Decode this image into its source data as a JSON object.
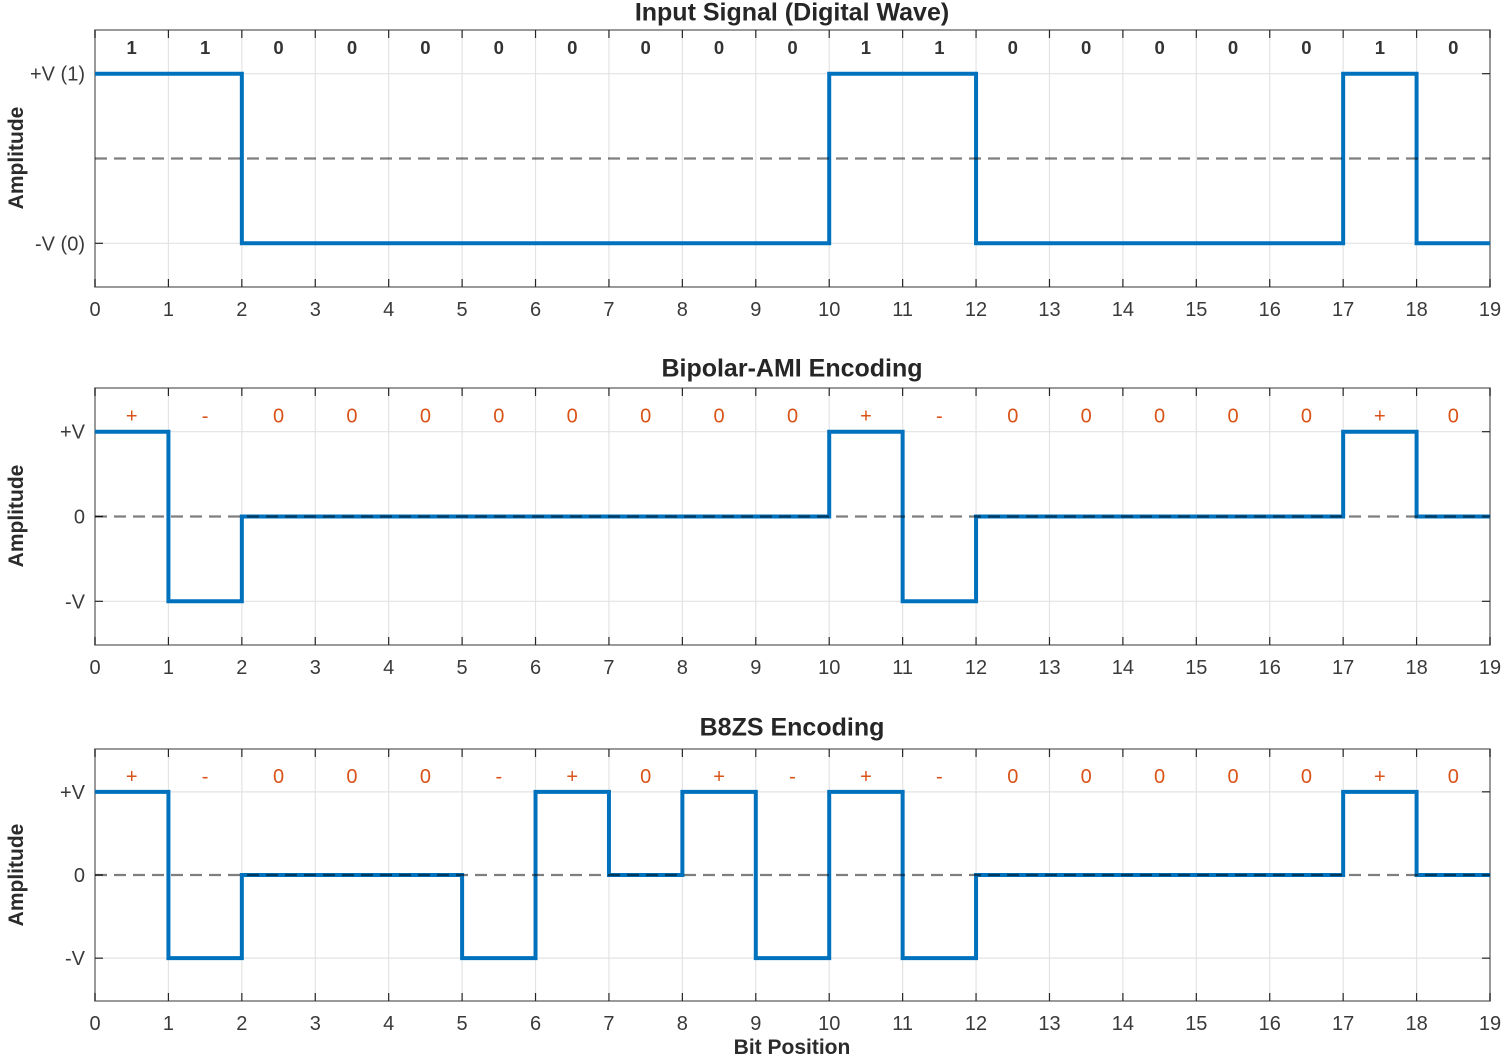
{
  "colors": {
    "waveform_blue": "#0072BD",
    "symbol_orange": "#D95319",
    "bit_label_dark": "#333333",
    "axes_box_gray": "#808080",
    "grid_gray": "#e3e3e3",
    "tick_mark": "#262626",
    "tick_label": "#3a3a3a",
    "zero_dashed": "rgba(0,0,0,0.5)",
    "background": "#ffffff"
  },
  "chart_data": [
    {
      "type": "line",
      "subtype": "digital_step",
      "title": "Input Signal (Digital Wave)",
      "xlabel": "",
      "ylabel": "Amplitude",
      "xlim": [
        0,
        19
      ],
      "x_ticks": [
        "0",
        "1",
        "2",
        "3",
        "4",
        "5",
        "6",
        "7",
        "8",
        "9",
        "10",
        "11",
        "12",
        "13",
        "14",
        "15",
        "16",
        "17",
        "18",
        "19"
      ],
      "y_ticks": [
        {
          "label": "+V (1)",
          "level": 1
        },
        {
          "label": "-V (0)",
          "level": -1
        }
      ],
      "grid": true,
      "zero_dashed_line": true,
      "annotations": {
        "labels": [
          "1",
          "1",
          "0",
          "0",
          "0",
          "0",
          "0",
          "0",
          "0",
          "0",
          "1",
          "1",
          "0",
          "0",
          "0",
          "0",
          "0",
          "1",
          "0"
        ],
        "color": "#333333",
        "bold": true
      },
      "levels": [
        1,
        1,
        -1,
        -1,
        -1,
        -1,
        -1,
        -1,
        -1,
        -1,
        1,
        1,
        -1,
        -1,
        -1,
        -1,
        -1,
        1,
        -1
      ]
    },
    {
      "type": "line",
      "subtype": "digital_step",
      "title": "Bipolar-AMI Encoding",
      "xlabel": "",
      "ylabel": "Amplitude",
      "xlim": [
        0,
        19
      ],
      "x_ticks": [
        "0",
        "1",
        "2",
        "3",
        "4",
        "5",
        "6",
        "7",
        "8",
        "9",
        "10",
        "11",
        "12",
        "13",
        "14",
        "15",
        "16",
        "17",
        "18",
        "19"
      ],
      "y_ticks": [
        {
          "label": "+V",
          "level": 1
        },
        {
          "label": "0",
          "level": 0
        },
        {
          "label": "-V",
          "level": -1
        }
      ],
      "grid": true,
      "zero_dashed_line": true,
      "annotations": {
        "labels": [
          "+",
          "-",
          "0",
          "0",
          "0",
          "0",
          "0",
          "0",
          "0",
          "0",
          "+",
          "-",
          "0",
          "0",
          "0",
          "0",
          "0",
          "+",
          "0"
        ],
        "color": "#D95319",
        "bold": false
      },
      "levels": [
        1,
        -1,
        0,
        0,
        0,
        0,
        0,
        0,
        0,
        0,
        1,
        -1,
        0,
        0,
        0,
        0,
        0,
        1,
        0
      ]
    },
    {
      "type": "line",
      "subtype": "digital_step",
      "title": "B8ZS Encoding",
      "xlabel": "Bit Position",
      "ylabel": "Amplitude",
      "xlim": [
        0,
        19
      ],
      "x_ticks": [
        "0",
        "1",
        "2",
        "3",
        "4",
        "5",
        "6",
        "7",
        "8",
        "9",
        "10",
        "11",
        "12",
        "13",
        "14",
        "15",
        "16",
        "17",
        "18",
        "19"
      ],
      "y_ticks": [
        {
          "label": "+V",
          "level": 1
        },
        {
          "label": "0",
          "level": 0
        },
        {
          "label": "-V",
          "level": -1
        }
      ],
      "grid": true,
      "zero_dashed_line": true,
      "annotations": {
        "labels": [
          "+",
          "-",
          "0",
          "0",
          "0",
          "-",
          "+",
          "0",
          "+",
          "-",
          "+",
          "-",
          "0",
          "0",
          "0",
          "0",
          "0",
          "+",
          "0"
        ],
        "color": "#D95319",
        "bold": false
      },
      "levels": [
        1,
        -1,
        0,
        0,
        0,
        -1,
        1,
        0,
        1,
        -1,
        1,
        -1,
        0,
        0,
        0,
        0,
        0,
        1,
        0
      ]
    }
  ]
}
